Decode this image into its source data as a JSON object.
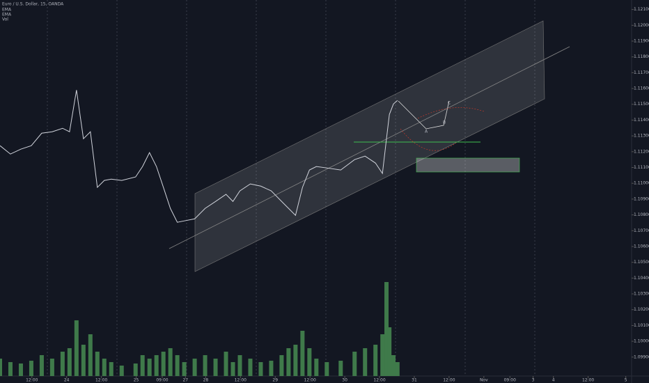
{
  "chart_data": {
    "type": "line",
    "title": "Euro / U.S. Dollar, 15, OANDA",
    "indicators": [
      "EMA",
      "EMA",
      "Vol"
    ],
    "annotations": [
      "A",
      "B",
      "C"
    ],
    "x": [
      -23,
      -19.4,
      -15.8,
      -12.2,
      -8.6,
      -5,
      -1.4,
      1,
      3.4,
      5.8,
      8.2,
      10.6,
      13,
      15.4,
      19,
      23.8,
      26.2,
      28.6,
      31,
      33.4,
      35.8,
      38.2,
      40.6,
      44.2,
      47.8,
      51.4,
      55,
      57.4,
      59.8,
      63.4,
      67,
      70.6,
      74.2,
      76.6,
      79,
      81.4,
      83.8,
      86.2,
      89.8,
      94.6,
      99.4,
      103,
      106.6,
      109,
      110.4,
      111.4,
      112.8,
      114.2
    ],
    "series": [
      {
        "color": "#d1d4dc",
        "values": [
          1.11238,
          1.11185,
          1.11216,
          1.11238,
          1.11317,
          1.11326,
          1.11348,
          1.11326,
          1.1159,
          1.11282,
          1.11326,
          1.10974,
          1.11018,
          1.11026,
          1.11018,
          1.1104,
          1.11106,
          1.11194,
          1.11106,
          1.10974,
          1.10841,
          1.10753,
          1.10762,
          1.10775,
          1.10841,
          1.10885,
          1.1093,
          1.10885,
          1.10952,
          1.10996,
          1.10982,
          1.10952,
          1.10885,
          1.10841,
          1.10797,
          1.10974,
          1.11084,
          1.11106,
          1.11097,
          1.11084,
          1.1115,
          1.11172,
          1.11128,
          1.11062,
          1.11282,
          1.11436,
          1.11502,
          1.11524
        ]
      }
    ],
    "volume": {
      "color": "#3f7a4a",
      "vlim": [
        0,
        150
      ],
      "values": [
        25,
        20,
        18,
        22,
        30,
        25,
        35,
        40,
        80,
        45,
        60,
        35,
        25,
        20,
        15,
        18,
        30,
        25,
        30,
        35,
        40,
        30,
        20,
        25,
        30,
        25,
        35,
        20,
        30,
        25,
        20,
        22,
        30,
        40,
        45,
        65,
        40,
        25,
        20,
        22,
        35,
        40,
        45,
        60,
        135,
        70,
        30,
        20
      ]
    },
    "xlim": [
      -23,
      195
    ],
    "xticks": [
      {
        "value": -12,
        "label": "12:00"
      },
      {
        "value": 0,
        "label": "24"
      },
      {
        "value": 12,
        "label": "12:00"
      },
      {
        "value": 24,
        "label": "25"
      },
      {
        "value": 33,
        "label": "09:00"
      },
      {
        "value": 41,
        "label": "27"
      },
      {
        "value": 48,
        "label": "28"
      },
      {
        "value": 60,
        "label": "12:00"
      },
      {
        "value": 72,
        "label": "29"
      },
      {
        "value": 84,
        "label": "12:00"
      },
      {
        "value": 96,
        "label": "30"
      },
      {
        "value": 108,
        "label": "12:00"
      },
      {
        "value": 120,
        "label": "31"
      },
      {
        "value": 132,
        "label": "12:00"
      },
      {
        "value": 144,
        "label": "Nov"
      },
      {
        "value": 153,
        "label": "09:00"
      },
      {
        "value": 161,
        "label": "3"
      },
      {
        "value": 168,
        "label": "4"
      },
      {
        "value": 180,
        "label": "12:00"
      },
      {
        "value": 193,
        "label": "5"
      }
    ],
    "ylim": [
      1.0978,
      1.1216
    ],
    "yticks": [
      {
        "value": 1.099,
        "label": "1.09900"
      },
      {
        "value": 1.1,
        "label": "1.10000"
      },
      {
        "value": 1.101,
        "label": "1.10100"
      },
      {
        "value": 1.102,
        "label": "1.10200"
      },
      {
        "value": 1.103,
        "label": "1.10300"
      },
      {
        "value": 1.104,
        "label": "1.10400"
      },
      {
        "value": 1.105,
        "label": "1.10500"
      },
      {
        "value": 1.106,
        "label": "1.10600"
      },
      {
        "value": 1.107,
        "label": "1.10700"
      },
      {
        "value": 1.108,
        "label": "1.10800"
      },
      {
        "value": 1.109,
        "label": "1.10900"
      },
      {
        "value": 1.11,
        "label": "1.11000"
      },
      {
        "value": 1.111,
        "label": "1.11100"
      },
      {
        "value": 1.112,
        "label": "1.11200"
      },
      {
        "value": 1.113,
        "label": "1.11300"
      },
      {
        "value": 1.114,
        "label": "1.11400"
      },
      {
        "value": 1.115,
        "label": "1.11500"
      },
      {
        "value": 1.116,
        "label": "1.11600"
      },
      {
        "value": 1.117,
        "label": "1.11700"
      },
      {
        "value": 1.118,
        "label": "1.11800"
      },
      {
        "value": 1.119,
        "label": "1.11900"
      },
      {
        "value": 1.12,
        "label": "1.12000"
      },
      {
        "value": 1.121,
        "label": "1.12100"
      }
    ]
  }
}
